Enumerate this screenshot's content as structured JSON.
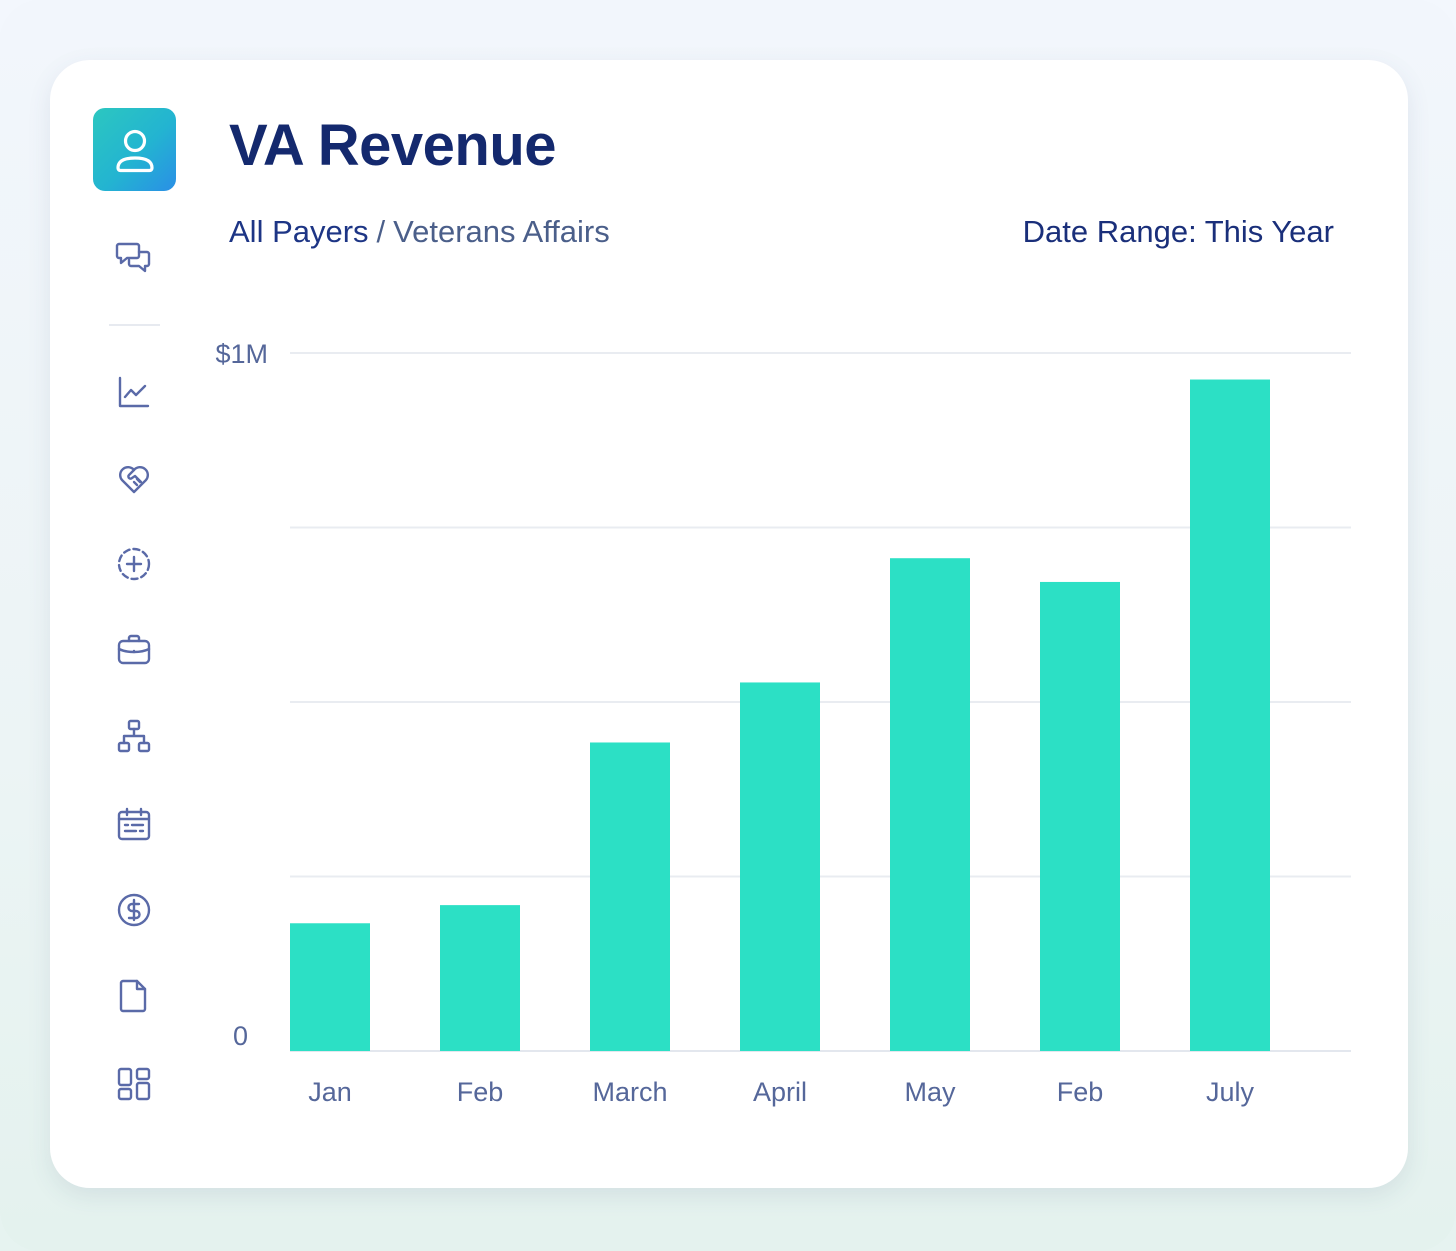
{
  "header": {
    "title": "VA Revenue",
    "breadcrumb_root": "All Payers",
    "breadcrumb_separator": "/",
    "breadcrumb_current": "Veterans Affairs",
    "date_range": "Date Range: This Year"
  },
  "sidebar": {
    "items": [
      {
        "icon": "chat-bubbles-icon"
      },
      {
        "icon": "line-chart-icon"
      },
      {
        "icon": "heart-handshake-icon"
      },
      {
        "icon": "add-circle-dashed-icon"
      },
      {
        "icon": "briefcase-icon"
      },
      {
        "icon": "hierarchy-icon"
      },
      {
        "icon": "calendar-icon"
      },
      {
        "icon": "dollar-icon"
      },
      {
        "icon": "document-icon"
      },
      {
        "icon": "grid-icon"
      }
    ]
  },
  "colors": {
    "bar": "#2ce0c5",
    "title": "#14296e",
    "axis_text": "#55679a",
    "gridline": "#e9ecf1"
  },
  "chart_data": {
    "type": "bar",
    "title": "VA Revenue",
    "categories": [
      "Jan",
      "Feb",
      "March",
      "April",
      "May",
      "Feb",
      "July"
    ],
    "values": [
      0.183,
      0.209,
      0.442,
      0.528,
      0.706,
      0.672,
      0.962
    ],
    "units": "$M",
    "ylim": [
      0,
      1
    ],
    "yticks": [
      0,
      0.25,
      0.5,
      0.75,
      1
    ],
    "ytick_labels": [
      "0",
      "$1M"
    ],
    "xlabel": "",
    "ylabel": "",
    "grid": true,
    "legend": null
  }
}
